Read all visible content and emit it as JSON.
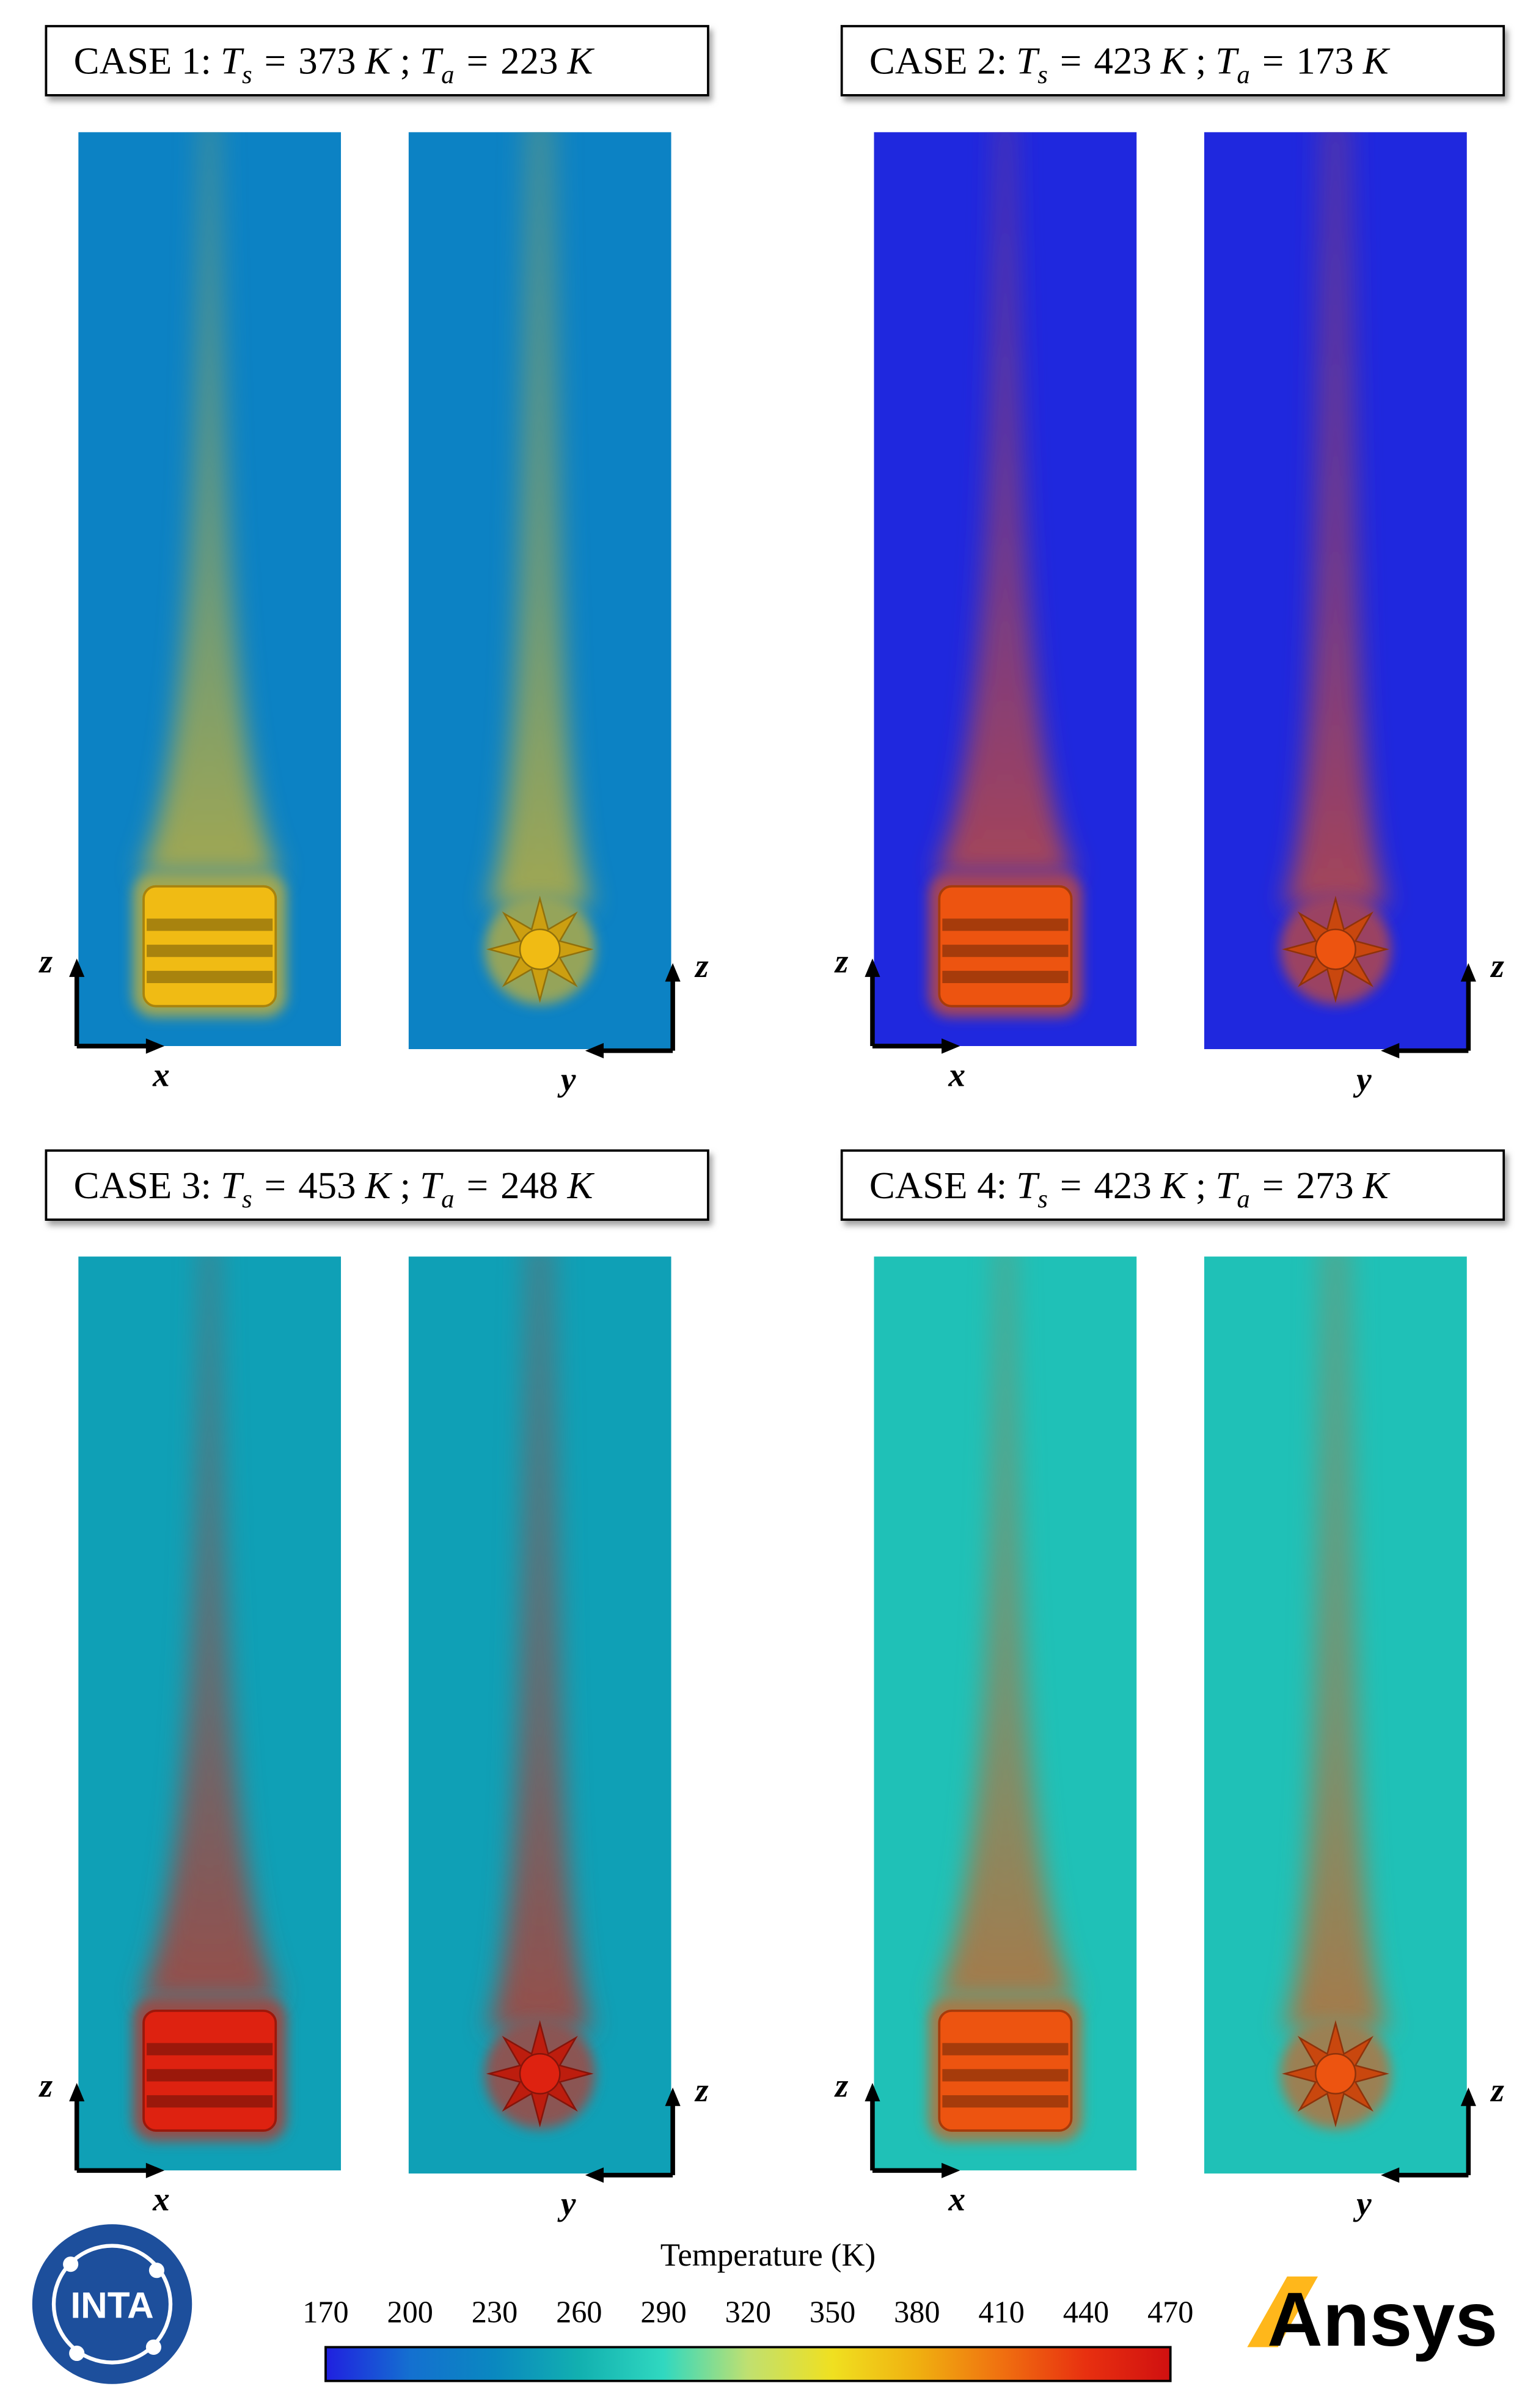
{
  "cases": [
    {
      "label": "CASE 1:",
      "ts": 373,
      "ta": 223
    },
    {
      "label": "CASE 2:",
      "ts": 423,
      "ta": 173
    },
    {
      "label": "CASE 3:",
      "ts": 453,
      "ta": 248
    },
    {
      "label": "CASE 4:",
      "ts": 423,
      "ta": 273
    }
  ],
  "symbols": {
    "temp": "T",
    "ts_sub": "s",
    "ta_sub": "a",
    "equals": "=",
    "unit": "K",
    "separator": ";"
  },
  "axes": {
    "vertical": "z",
    "left_horizontal": "x",
    "right_horizontal": "y"
  },
  "colorbar": {
    "title": "Temperature (K)",
    "range": [
      170,
      470
    ],
    "ticks": [
      170,
      200,
      230,
      260,
      290,
      320,
      350,
      380,
      410,
      440,
      470
    ]
  },
  "logos": {
    "left": "INTA",
    "right": "Ansys"
  }
}
